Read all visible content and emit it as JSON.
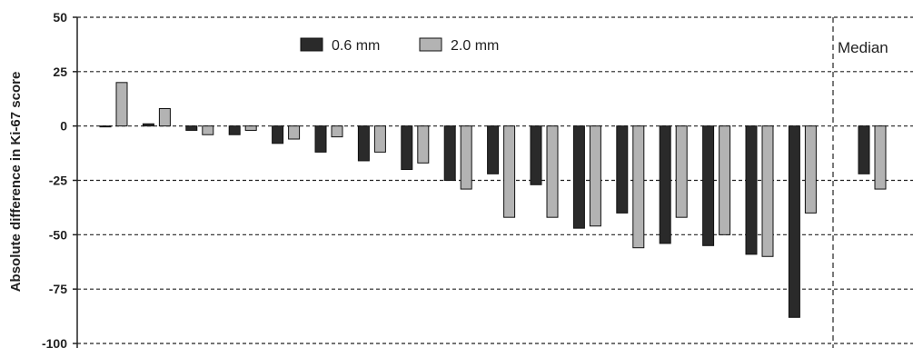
{
  "colors": {
    "dark_bar": "#2a2a2a",
    "light_bar": "#b3b3b3",
    "bar_stroke": "#111111",
    "axis": "#222222",
    "grid": "#222222"
  },
  "chart_data": {
    "type": "bar",
    "ylabel": "Absolute difference in Ki-67 score",
    "ylim": [
      -100,
      50
    ],
    "yticks": [
      50,
      25,
      0,
      -25,
      -50,
      -75,
      -100
    ],
    "ytick_labels": [
      "50",
      "25",
      "0",
      "-25",
      "-50",
      "-75",
      "-100"
    ],
    "grid": "horizontal dashed",
    "legend_position": "top-center",
    "series": [
      {
        "name": "0.6 mm",
        "color": "#2a2a2a",
        "values": [
          0,
          1,
          -2,
          -4,
          -8,
          -12,
          -16,
          -20,
          -25,
          -22,
          -27,
          -47,
          -40,
          -54,
          -55,
          -59,
          -88
        ]
      },
      {
        "name": "2.0 mm",
        "color": "#b3b3b3",
        "values": [
          20,
          8,
          -4,
          -2,
          -6,
          -5,
          -12,
          -17,
          -29,
          -42,
          -42,
          -46,
          -56,
          -42,
          -50,
          -60,
          -40
        ]
      }
    ],
    "median_label": "Median",
    "median": {
      "0.6 mm": -22,
      "2.0 mm": -29
    }
  }
}
